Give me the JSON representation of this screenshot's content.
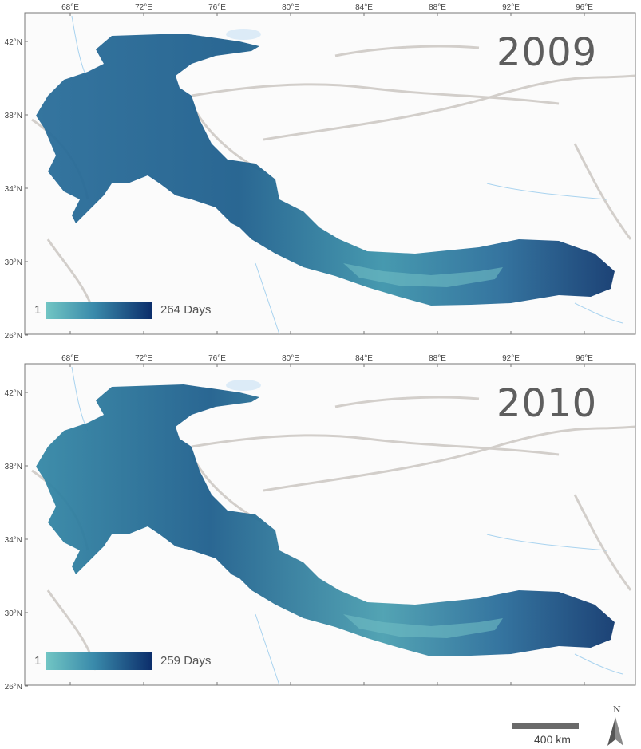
{
  "lon_ticks": [
    "68°E",
    "72°E",
    "76°E",
    "80°E",
    "84°E",
    "88°E",
    "92°E",
    "96°E"
  ],
  "lat_ticks": [
    "42°N",
    "38°N",
    "34°N",
    "30°N",
    "26°N"
  ],
  "panels": [
    {
      "year": "2009",
      "legend_min": "1",
      "legend_max": "264 Days"
    },
    {
      "year": "2010",
      "legend_min": "1",
      "legend_max": "259 Days"
    }
  ],
  "colors": {
    "low": "#72c6c4",
    "mid": "#3a8bab",
    "high": "#0c2e6b",
    "terrain": "#d9d6d3",
    "water": "#a9d3ef"
  },
  "scale": {
    "label": "400 km"
  },
  "north": {
    "label": "N"
  }
}
